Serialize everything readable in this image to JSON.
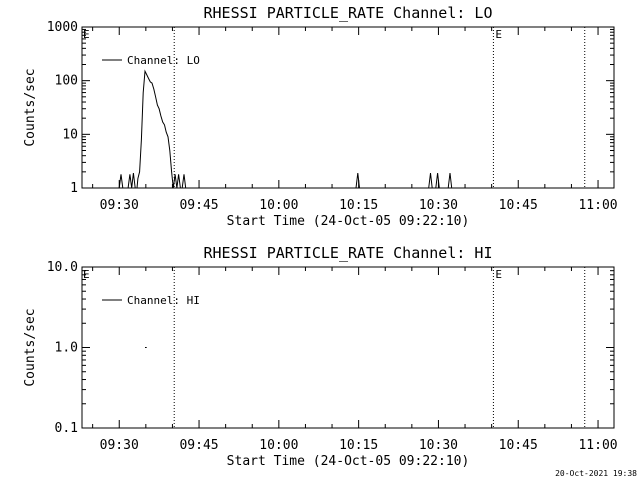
{
  "footer_timestamp": "20-Oct-2021 19:38",
  "chart_data": [
    {
      "type": "line",
      "title": "RHESSI PARTICLE_RATE Channel: LO",
      "xlabel": "Start Time (24-Oct-05 09:22:10)",
      "ylabel": "Counts/sec",
      "yscale": "log",
      "ylim": [
        1,
        1000
      ],
      "yticks": [
        {
          "v": 1,
          "l": "1"
        },
        {
          "v": 10,
          "l": "10"
        },
        {
          "v": 100,
          "l": "100"
        },
        {
          "v": 1000,
          "l": "1000"
        }
      ],
      "xlim": [
        "09:23:00",
        "11:03:00"
      ],
      "xticks": [
        "09:30",
        "09:45",
        "10:00",
        "10:15",
        "10:30",
        "10:45",
        "11:00"
      ],
      "legend": {
        "label": "Channel: LO",
        "placement": "top-left"
      },
      "markers": [
        {
          "time": "09:40:20",
          "label": ""
        },
        {
          "time": "10:40:20",
          "label": "E"
        },
        {
          "time": "10:57:30",
          "label": ""
        }
      ],
      "series": [
        {
          "points": [
            [
              "09:30:00",
              1
            ],
            [
              "09:30:20",
              1.8
            ],
            [
              "09:30:40",
              1
            ],
            [
              "09:31:40",
              1
            ],
            [
              "09:32:00",
              1.8
            ],
            [
              "09:32:20",
              1
            ],
            [
              "09:32:40",
              1.9
            ],
            [
              "09:33:00",
              1
            ],
            [
              "09:33:20",
              1
            ],
            [
              "09:33:30",
              1.5
            ],
            [
              "09:33:50",
              2
            ],
            [
              "09:34:10",
              8
            ],
            [
              "09:34:30",
              60
            ],
            [
              "09:34:50",
              150
            ],
            [
              "09:35:10",
              130
            ],
            [
              "09:35:30",
              110
            ],
            [
              "09:35:50",
              95
            ],
            [
              "09:36:10",
              90
            ],
            [
              "09:36:30",
              70
            ],
            [
              "09:36:50",
              50
            ],
            [
              "09:37:10",
              35
            ],
            [
              "09:37:30",
              30
            ],
            [
              "09:37:50",
              22
            ],
            [
              "09:38:10",
              17
            ],
            [
              "09:38:30",
              15
            ],
            [
              "09:38:50",
              11
            ],
            [
              "09:39:10",
              9
            ],
            [
              "09:39:30",
              5
            ],
            [
              "09:39:50",
              2
            ],
            [
              "09:40:10",
              1
            ],
            [
              "09:40:30",
              1.8
            ],
            [
              "09:40:50",
              1
            ],
            [
              "09:41:10",
              1.8
            ],
            [
              "09:41:30",
              1
            ],
            [
              "09:41:50",
              1
            ],
            [
              "09:42:10",
              1.8
            ],
            [
              "09:42:30",
              1
            ],
            [
              "10:14:30",
              1
            ],
            [
              "10:14:50",
              1.9
            ],
            [
              "10:15:10",
              1
            ],
            [
              "10:28:10",
              1
            ],
            [
              "10:28:30",
              1.9
            ],
            [
              "10:28:50",
              1
            ],
            [
              "10:29:30",
              1
            ],
            [
              "10:29:50",
              1.9
            ],
            [
              "10:30:10",
              1
            ],
            [
              "10:31:50",
              1
            ],
            [
              "10:32:10",
              1.9
            ],
            [
              "10:32:30",
              1
            ]
          ]
        }
      ]
    },
    {
      "type": "line",
      "title": "RHESSI PARTICLE_RATE Channel: HI",
      "xlabel": "Start Time (24-Oct-05 09:22:10)",
      "ylabel": "Counts/sec",
      "yscale": "log",
      "ylim": [
        0.1,
        10
      ],
      "yticks": [
        {
          "v": 0.1,
          "l": "0.1"
        },
        {
          "v": 1,
          "l": "1.0"
        },
        {
          "v": 10,
          "l": "10.0"
        }
      ],
      "xlim": [
        "09:23:00",
        "11:03:00"
      ],
      "xticks": [
        "09:30",
        "09:45",
        "10:00",
        "10:15",
        "10:30",
        "10:45",
        "11:00"
      ],
      "legend": {
        "label": "Channel: HI",
        "placement": "top-left"
      },
      "markers": [
        {
          "time": "09:40:20",
          "label": ""
        },
        {
          "time": "10:40:20",
          "label": "E"
        },
        {
          "time": "10:57:30",
          "label": ""
        }
      ],
      "series": [
        {
          "points": [
            [
              "09:34:50",
              1
            ],
            [
              "09:35:10",
              1
            ]
          ]
        }
      ]
    }
  ]
}
